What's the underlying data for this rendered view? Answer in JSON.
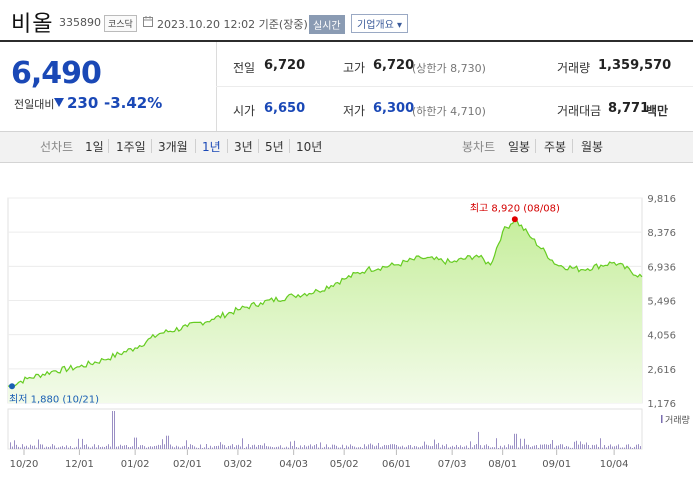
{
  "header": {
    "stock_name": "비올",
    "stock_code": "335890",
    "market": "코스닥",
    "datetime": "2023.10.20 12:02 기준(장중)",
    "realtime_label": "실시간",
    "overview_label": "기업개요 ▾"
  },
  "price": {
    "current": "6,490",
    "change_label": "전일대비",
    "change_value": "230",
    "change_percent": "-3.42%"
  },
  "stats": {
    "prev_close_label": "전일",
    "prev_close": "6,720",
    "high_label": "고가",
    "high": "6,720",
    "upper_limit": "(상한가 8,730)",
    "volume_label": "거래량",
    "volume": "1,359,570",
    "open_label": "시가",
    "open": "6,650",
    "low_label": "저가",
    "low": "6,300",
    "lower_limit": "(하한가 4,710)",
    "amount_label": "거래대금",
    "amount": "8,771",
    "amount_unit": "백만"
  },
  "toolbar": {
    "line_label": "선차트",
    "periods": [
      "1일",
      "1주일",
      "3개월",
      "1년",
      "3년",
      "5년",
      "10년"
    ],
    "active_period": "1년",
    "candle_label": "봉차트",
    "candles": [
      "일봉",
      "주봉",
      "월봉"
    ]
  },
  "colors": {
    "price_down": "#1a48b6",
    "line": "#66cc22",
    "area_top": "#c6ee9c",
    "area_bottom": "#f3fbea",
    "high_marker": "#e00000",
    "low_marker": "#1a5fb4",
    "volume_bar": "#9a8fc4"
  },
  "chart_data": {
    "type": "area",
    "x_ticks": [
      "10/20",
      "12/01",
      "01/02",
      "02/01",
      "03/02",
      "04/03",
      "05/02",
      "06/01",
      "07/03",
      "08/01",
      "09/01",
      "10/04"
    ],
    "y_ticks": [
      "9,816",
      "8,376",
      "6,936",
      "5,496",
      "4,056",
      "2,616",
      "1,176"
    ],
    "ylim": [
      1176,
      9816
    ],
    "series": [
      {
        "x": [
          "2022-10-21",
          "2022-11-01",
          "2022-11-15",
          "2022-12-01",
          "2022-12-15",
          "2023-01-02",
          "2023-01-16",
          "2023-02-01",
          "2023-02-15",
          "2023-03-02",
          "2023-03-15",
          "2023-04-03",
          "2023-04-17",
          "2023-05-02",
          "2023-05-15",
          "2023-06-01",
          "2023-06-15",
          "2023-07-03",
          "2023-07-17",
          "2023-07-25",
          "2023-08-01",
          "2023-08-08",
          "2023-08-18",
          "2023-09-01",
          "2023-09-15",
          "2023-10-04",
          "2023-10-20"
        ],
        "values": [
          1880,
          2200,
          2500,
          2700,
          3000,
          3500,
          4100,
          4400,
          4700,
          5100,
          5400,
          5700,
          5900,
          6400,
          6800,
          7000,
          7300,
          7100,
          7400,
          7000,
          8400,
          8920,
          8100,
          7000,
          6800,
          7100,
          6490
        ]
      }
    ],
    "annotations": {
      "high": {
        "label": "최고 8,920 (08/08)",
        "x": "2023-08-08",
        "value": 8920
      },
      "low": {
        "label": "최저 1,880 (10/21)",
        "x": "2022-10-21",
        "value": 1880
      }
    },
    "volume_label": "거래량",
    "volume_spikes": [
      {
        "x": "2022-12-20",
        "value": 100
      },
      {
        "x": "2023-01-02",
        "value": 30
      },
      {
        "x": "2023-01-20",
        "value": 35
      },
      {
        "x": "2023-07-18",
        "value": 45
      },
      {
        "x": "2023-08-08",
        "value": 40
      }
    ],
    "grid": true
  }
}
